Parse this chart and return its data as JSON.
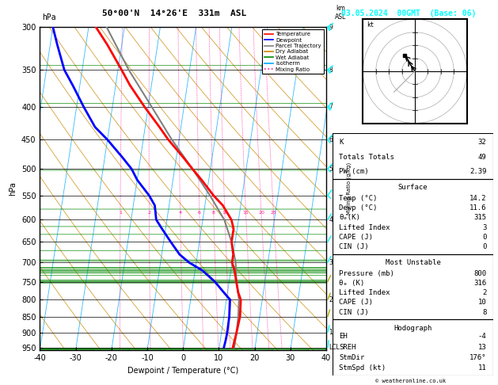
{
  "title_left": "50°00'N  14°26'E  331m  ASL",
  "title_right": "03.05.2024  00GMT  (Base: 06)",
  "xlabel": "Dewpoint / Temperature (°C)",
  "ylabel_left": "hPa",
  "pressure_levels": [
    300,
    350,
    400,
    450,
    500,
    550,
    600,
    650,
    700,
    750,
    800,
    850,
    900,
    950
  ],
  "pressure_min": 300,
  "pressure_max": 960,
  "temp_min": -40,
  "temp_max": 40,
  "skew_factor": 27.0,
  "temperature_profile": {
    "pressure": [
      300,
      320,
      350,
      370,
      400,
      430,
      450,
      480,
      500,
      520,
      550,
      570,
      600,
      620,
      650,
      680,
      700,
      720,
      750,
      780,
      800,
      850,
      900,
      925,
      950
    ],
    "temp": [
      -38,
      -34,
      -29,
      -26,
      -21,
      -16,
      -13,
      -8,
      -5,
      -2,
      2,
      5,
      8,
      9,
      9,
      10,
      10,
      11,
      12,
      13,
      14,
      14.5,
      14.2,
      14.0,
      13.8
    ]
  },
  "dewpoint_profile": {
    "pressure": [
      300,
      320,
      350,
      370,
      400,
      430,
      450,
      480,
      500,
      520,
      550,
      570,
      600,
      620,
      650,
      680,
      700,
      720,
      750,
      780,
      800,
      850,
      900,
      925,
      950
    ],
    "temp": [
      -50,
      -48,
      -45,
      -42,
      -38,
      -34,
      -30,
      -25,
      -22,
      -20,
      -16,
      -14,
      -13,
      -11,
      -8,
      -5,
      -2,
      2,
      6,
      9,
      11,
      11.5,
      11.6,
      11.5,
      11.3
    ]
  },
  "parcel_profile": {
    "pressure": [
      300,
      350,
      400,
      450,
      500,
      550,
      600,
      650,
      700,
      750,
      800,
      850,
      900,
      950
    ],
    "temp": [
      -35,
      -27,
      -19,
      -12,
      -5,
      1,
      6,
      9,
      11,
      12,
      13.5,
      14.0,
      14.2,
      14.2
    ]
  },
  "lcl_pressure": 950,
  "mixing_ratio_values": [
    1,
    2,
    4,
    6,
    8,
    10,
    15,
    20,
    25
  ],
  "mixing_ratio_label_pressure": 590,
  "hodograph_data": {
    "u": [
      0,
      -2,
      -3,
      -4
    ],
    "v": [
      0,
      3,
      5,
      6
    ]
  },
  "hodograph_gray": {
    "u": [
      0,
      -3,
      -5,
      -8
    ],
    "v": [
      0,
      -3,
      -5,
      -8
    ]
  },
  "km_ticks": {
    "pressures": [
      300,
      350,
      400,
      450,
      500,
      600,
      700,
      800,
      900,
      950
    ],
    "labels": [
      "9",
      "8",
      "7",
      "6",
      "5",
      "4",
      "3",
      "2",
      "1",
      "LCL"
    ]
  },
  "wind_barbs": {
    "pressures": [
      300,
      350,
      400,
      450,
      500,
      550,
      600,
      650,
      700,
      750,
      800,
      850,
      900,
      950
    ],
    "speeds": [
      28,
      24,
      20,
      17,
      13,
      11,
      9,
      7,
      6,
      5,
      5,
      4,
      3,
      3
    ],
    "dirs": [
      240,
      235,
      230,
      228,
      225,
      220,
      215,
      212,
      210,
      208,
      205,
      200,
      195,
      190
    ]
  },
  "stats": {
    "K": 32,
    "Totals Totals": 49,
    "PW (cm)": "2.39",
    "Surface": {
      "Temp": "14.2",
      "Dewp": "11.6",
      "theta_e": "315",
      "Lifted Index": "3",
      "CAPE": "0",
      "CIN": "0"
    },
    "Most Unstable": {
      "Pressure": "800",
      "theta_e": "316",
      "Lifted Index": "2",
      "CAPE": "10",
      "CIN": "8"
    },
    "Hodograph": {
      "EH": "-4",
      "SREH": "13",
      "StmDir": "176°",
      "StmSpd": "11"
    }
  },
  "colors": {
    "background": "#ffffff",
    "temperature": "#ff0000",
    "dewpoint": "#0000ff",
    "parcel": "#808080",
    "dry_adiabat": "#cc8800",
    "wet_adiabat": "#008800",
    "isotherm": "#00aaff",
    "mixing_ratio": "#ff1493",
    "text": "#000000",
    "wind_cyan": "#00ffff",
    "wind_yellow": "#aaaa00",
    "wind_black": "#000000"
  },
  "legend_entries": [
    [
      "Temperature",
      "#ff0000",
      "solid"
    ],
    [
      "Dewpoint",
      "#0000ff",
      "solid"
    ],
    [
      "Parcel Trajectory",
      "#808080",
      "solid"
    ],
    [
      "Dry Adiabat",
      "#cc8800",
      "solid"
    ],
    [
      "Wet Adiabat",
      "#008800",
      "solid"
    ],
    [
      "Isotherm",
      "#00aaff",
      "solid"
    ],
    [
      "Mixing Ratio",
      "#ff1493",
      "dotted"
    ]
  ]
}
